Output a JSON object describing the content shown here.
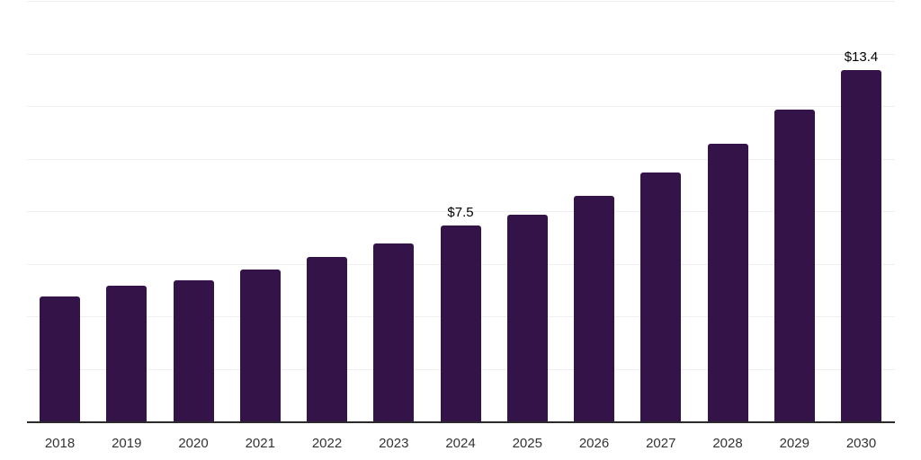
{
  "chart": {
    "background": "#ffffff",
    "bar_color": "#341349",
    "axis_color": "#2b2b2b",
    "gridline_color": "#efeff1",
    "tick_label_color": "#333333",
    "data_label_color": "#000000"
  },
  "chart_data": {
    "type": "bar",
    "title": "",
    "xlabel": "",
    "ylabel": "",
    "categories": [
      "2018",
      "2019",
      "2020",
      "2021",
      "2022",
      "2023",
      "2024",
      "2025",
      "2026",
      "2027",
      "2028",
      "2029",
      "2030"
    ],
    "values": [
      4.8,
      5.2,
      5.4,
      5.8,
      6.3,
      6.8,
      7.5,
      7.9,
      8.6,
      9.5,
      10.6,
      11.9,
      13.4
    ],
    "data_labels": [
      null,
      null,
      null,
      null,
      null,
      null,
      "$7.5",
      null,
      null,
      null,
      null,
      null,
      "$13.4"
    ],
    "ylim": [
      0,
      16
    ],
    "grid_step": 2,
    "grid": true,
    "legend": false,
    "y_axis_labels_shown": false
  }
}
